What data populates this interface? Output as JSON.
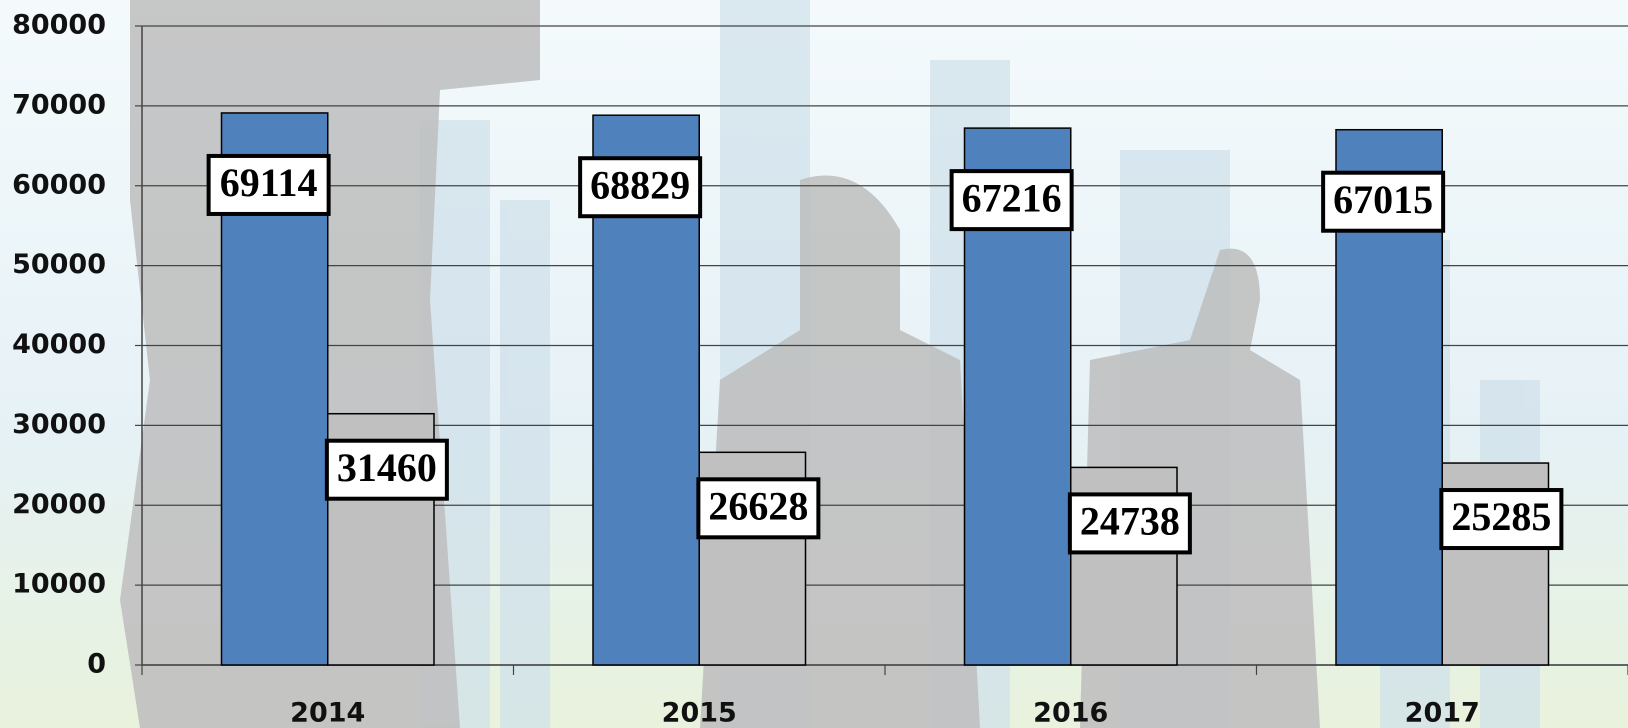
{
  "chart_data": {
    "type": "bar",
    "categories": [
      "2014",
      "2015",
      "2016",
      "2017"
    ],
    "series": [
      {
        "color": "#4f81bd",
        "values": [
          69114,
          68829,
          67216,
          67015
        ]
      },
      {
        "color": "#c0c0c0",
        "values": [
          31460,
          26628,
          24738,
          25285
        ]
      }
    ],
    "ylim": [
      0,
      80000
    ],
    "yticks": [
      0,
      10000,
      20000,
      30000,
      40000,
      50000,
      60000,
      70000,
      80000
    ],
    "grid": true
  }
}
